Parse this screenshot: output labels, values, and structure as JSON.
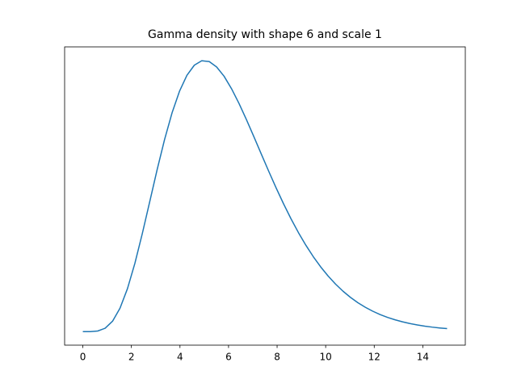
{
  "chart_data": {
    "type": "line",
    "title": "Gamma density with shape 6 and scale 1",
    "x": [
      0,
      0.3061,
      0.6122,
      0.9184,
      1.2245,
      1.5306,
      1.8367,
      2.1429,
      2.449,
      2.7551,
      3.0612,
      3.3673,
      3.6735,
      3.9796,
      4.2857,
      4.5918,
      4.898,
      5.2041,
      5.5102,
      5.8163,
      6.1224,
      6.4286,
      6.7347,
      7.0408,
      7.3469,
      7.6531,
      7.9592,
      8.2653,
      8.5714,
      8.8776,
      9.1837,
      9.4898,
      9.7959,
      10.102,
      10.4082,
      10.7143,
      11.0204,
      11.3265,
      11.6327,
      11.9388,
      12.2449,
      12.551,
      12.8571,
      13.1633,
      13.4694,
      13.7755,
      14.0816,
      14.3878,
      14.6939,
      15
    ],
    "series": [
      {
        "color": "#1f77b4",
        "values": [
          0,
          1.65e-05,
          0.000389,
          0.002173,
          0.006742,
          0.01515,
          0.02775,
          0.04417,
          0.06341,
          0.08412,
          0.10491,
          0.1244,
          0.14152,
          0.15548,
          0.16584,
          0.17241,
          0.17528,
          0.17475,
          0.17124,
          0.16525,
          0.1572,
          0.14773,
          0.13726,
          0.12622,
          0.11497,
          0.10382,
          0.093,
          0.0827,
          0.07303,
          0.06409,
          0.05591,
          0.0485,
          0.04185,
          0.03594,
          0.03072,
          0.02615,
          0.02216,
          0.01871,
          0.01574,
          0.0132,
          0.01103,
          0.00919,
          0.00763,
          0.00632,
          0.00522,
          0.0043,
          0.00354,
          0.0029,
          0.00237,
          0.00194
        ]
      }
    ],
    "xlim": [
      -0.75,
      15.75
    ],
    "xticks": [
      0,
      2,
      4,
      6,
      8,
      10,
      12,
      14
    ],
    "ylim": [
      -0.00877,
      0.18424
    ]
  }
}
